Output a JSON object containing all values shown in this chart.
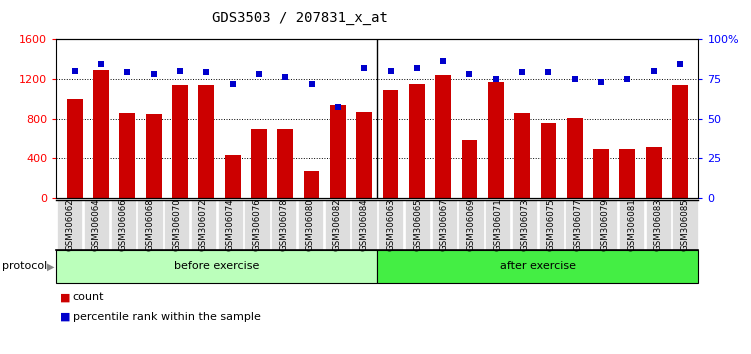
{
  "title": "GDS3503 / 207831_x_at",
  "categories": [
    "GSM306062",
    "GSM306064",
    "GSM306066",
    "GSM306068",
    "GSM306070",
    "GSM306072",
    "GSM306074",
    "GSM306076",
    "GSM306078",
    "GSM306080",
    "GSM306082",
    "GSM306084",
    "GSM306063",
    "GSM306065",
    "GSM306067",
    "GSM306069",
    "GSM306071",
    "GSM306073",
    "GSM306075",
    "GSM306077",
    "GSM306079",
    "GSM306081",
    "GSM306083",
    "GSM306085"
  ],
  "bar_values": [
    1000,
    1290,
    860,
    850,
    1140,
    1140,
    430,
    700,
    700,
    270,
    940,
    870,
    1090,
    1150,
    1240,
    580,
    1170,
    860,
    760,
    810,
    490,
    490,
    510,
    1140
  ],
  "dot_values": [
    80,
    84,
    79,
    78,
    80,
    79,
    72,
    78,
    76,
    72,
    57,
    82,
    80,
    82,
    86,
    78,
    75,
    79,
    79,
    75,
    73,
    75,
    80,
    84
  ],
  "bar_color": "#cc0000",
  "dot_color": "#0000cc",
  "before_count": 12,
  "after_count": 12,
  "before_label": "before exercise",
  "after_label": "after exercise",
  "before_color": "#bbffbb",
  "after_color": "#44ee44",
  "protocol_label": "protocol",
  "left_ylim": [
    0,
    1600
  ],
  "right_ylim": [
    0,
    100
  ],
  "left_yticks": [
    0,
    400,
    800,
    1200,
    1600
  ],
  "right_yticks": [
    0,
    25,
    50,
    75,
    100
  ],
  "right_yticklabels": [
    "0",
    "25",
    "50",
    "75",
    "100%"
  ],
  "grid_values": [
    400,
    800,
    1200
  ],
  "legend_count_label": "count",
  "legend_percentile_label": "percentile rank within the sample",
  "ticklabel_bg": "#dddddd",
  "sep_line_color": "#000000",
  "title_fontsize": 10,
  "bar_width": 0.6
}
